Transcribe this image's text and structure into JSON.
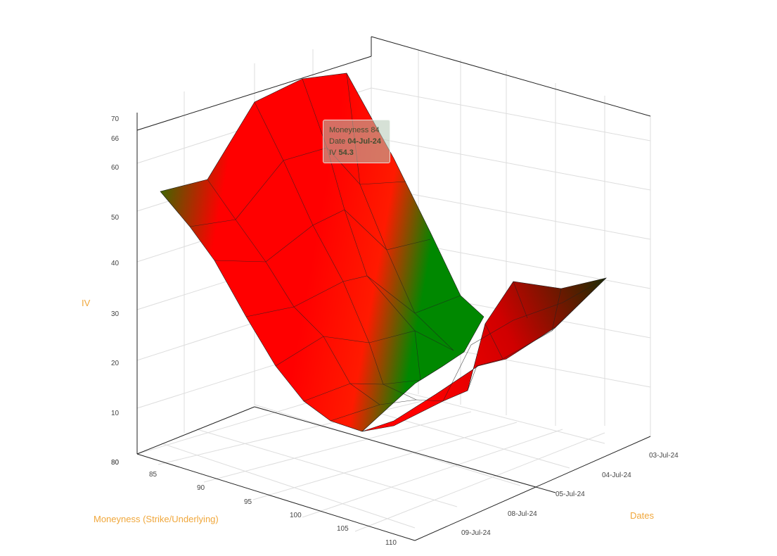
{
  "chart_data": {
    "type": "surface3d",
    "xlabel": "Moneyness (Strike/Underlying)",
    "ylabel": "Dates",
    "zlabel": "IV",
    "x_ticks": [
      "85",
      "90",
      "95",
      "100",
      "105",
      "110"
    ],
    "y_ticks": [
      "03-Jul-24",
      "04-Jul-24",
      "05-Jul-24",
      "08-Jul-24",
      "09-Jul-24"
    ],
    "z_ticks": [
      "10",
      "20",
      "30",
      "40",
      "50",
      "60",
      "66",
      "70"
    ],
    "z_range": [
      0,
      70
    ],
    "z_zero_labels": [
      "80",
      "80"
    ],
    "colors": {
      "high": "#008800",
      "low": "#ff0000"
    },
    "tooltip": {
      "moneyness_label": "Moneyness",
      "moneyness_value": "84",
      "date_label": "Date",
      "date_value": "04-Jul-24",
      "iv_label": "IV",
      "iv_value": "54.3"
    }
  }
}
